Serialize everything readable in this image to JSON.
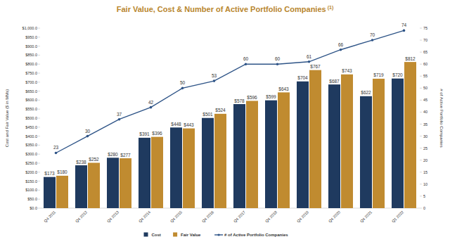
{
  "chart_data": {
    "type": "bar",
    "title": "Fair Value, Cost & Number of Active Portfolio Companies",
    "annotations": [
      "(1)"
    ],
    "ylabel": "Cost and Fair Value ($ in MMs)",
    "y2label": "# of Active Portfolio Companies",
    "categories": [
      "Q4 2011",
      "Q4 2012",
      "Q4 2013",
      "Q4 2014",
      "Q4 2015",
      "Q4 2016",
      "Q4 2017",
      "Q4 2018",
      "Q4 2019",
      "Q4 2020",
      "Q4 2021",
      "Q1 2022"
    ],
    "series": [
      {
        "name": "Cost",
        "type": "bar",
        "color": "#1f3a5f",
        "values": [
          173,
          238,
          280,
          391,
          448,
          501,
          578,
          599,
          704,
          687,
          622,
          720
        ],
        "value_labels": [
          "$173",
          "$238",
          "$280",
          "$391",
          "$448",
          "$501",
          "$578",
          "$599",
          "$704",
          "$687",
          "$622",
          "$720"
        ]
      },
      {
        "name": "Fair Value",
        "type": "bar",
        "color": "#c08b30",
        "values": [
          180,
          252,
          277,
          396,
          443,
          524,
          596,
          643,
          767,
          743,
          719,
          812
        ],
        "value_labels": [
          "$180",
          "$252",
          "$277",
          "$396",
          "$443",
          "$524",
          "$596",
          "$643",
          "$767",
          "$743",
          "$719",
          "$812"
        ]
      },
      {
        "name": "# of Active Portfolio Companies",
        "type": "line",
        "axis": "y2",
        "color": "#2e5487",
        "marker": "circle",
        "values": [
          23,
          30,
          37,
          42,
          50,
          53,
          60,
          60,
          61,
          66,
          70,
          74
        ]
      }
    ],
    "ylim": [
      0,
      1000
    ],
    "yticks": [
      {
        "value": 0,
        "label": "$0.0"
      },
      {
        "value": 50,
        "label": "$50.0"
      },
      {
        "value": 100,
        "label": "$100.0"
      },
      {
        "value": 150,
        "label": "$150.0"
      },
      {
        "value": 200,
        "label": "$200.0"
      },
      {
        "value": 250,
        "label": "$250.0"
      },
      {
        "value": 300,
        "label": "$300.0"
      },
      {
        "value": 350,
        "label": "$350.0"
      },
      {
        "value": 400,
        "label": "$400.0"
      },
      {
        "value": 450,
        "label": "$450.0"
      },
      {
        "value": 500,
        "label": "$500.0"
      },
      {
        "value": 550,
        "label": "$550.0"
      },
      {
        "value": 600,
        "label": "$600.0"
      },
      {
        "value": 650,
        "label": "$650.0"
      },
      {
        "value": 700,
        "label": "$700.0"
      },
      {
        "value": 750,
        "label": "$750.0"
      },
      {
        "value": 800,
        "label": "$800.0"
      },
      {
        "value": 850,
        "label": "$850.0"
      },
      {
        "value": 900,
        "label": "$900.0"
      },
      {
        "value": 950,
        "label": "$950.0"
      },
      {
        "value": 1000,
        "label": "$1,000.0"
      }
    ],
    "y2lim": [
      0,
      75
    ],
    "y2ticks": [
      0,
      5,
      10,
      15,
      20,
      25,
      30,
      35,
      40,
      45,
      50,
      55,
      60,
      65,
      70,
      75
    ],
    "grid": false,
    "legend": "bottom",
    "data_labels": true
  }
}
